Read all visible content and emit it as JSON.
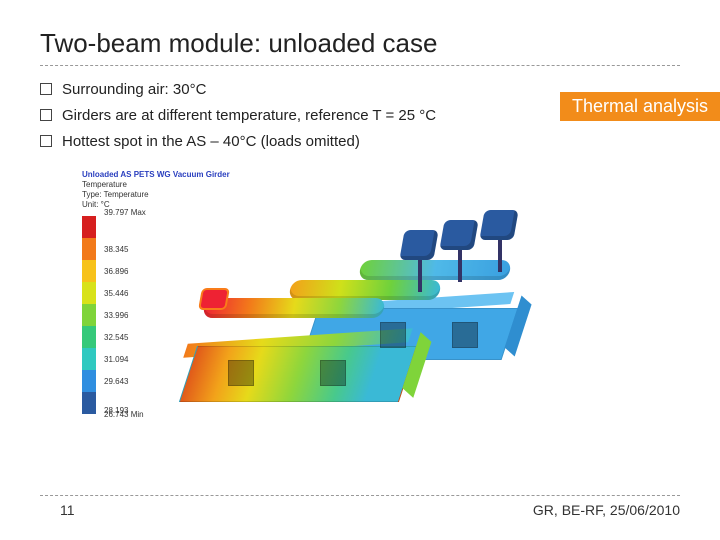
{
  "title": "Two-beam module: unloaded case",
  "badge": "Thermal analysis",
  "bullets": [
    "Surrounding air:  30°C",
    "Girders are at different temperature, reference T = 25 °C",
    "Hottest spot in the AS – 40°C (loads omitted)"
  ],
  "figure": {
    "meta": {
      "title": "Unloaded AS PETS WG Vacuum Girder",
      "lines": [
        "Temperature",
        "Type: Temperature",
        "Unit: °C"
      ]
    },
    "colorbar": {
      "ticks": [
        {
          "value": "39.797 Max",
          "color": "#d61f1f"
        },
        {
          "value": "38.345",
          "color": "#f27a1a"
        },
        {
          "value": "36.896",
          "color": "#f7c21a"
        },
        {
          "value": "35.446",
          "color": "#d8e21a"
        },
        {
          "value": "33.996",
          "color": "#7fd43a"
        },
        {
          "value": "32.545",
          "color": "#35c97a"
        },
        {
          "value": "31.094",
          "color": "#2fc9c0"
        },
        {
          "value": "29.643",
          "color": "#2f8ee0"
        },
        {
          "value": "28.193",
          "color": "#2a5aa0"
        },
        {
          "value": "26.743 Min",
          "color": null
        }
      ]
    },
    "gradients": {
      "girder1": "linear-gradient(90deg,#e15a1a 0%, #f2a21a 15%, #e6da1a 30%, #8ed63c 50%, #48c98c 70%, #3ab9d6 85%)",
      "girder1_top": "linear-gradient(90deg,#f27a1a, #e6da1a, #8ed63c, #3ab9d6)",
      "tube_t1": "linear-gradient(90deg,#e23 0%, #f27a1a 25%, #e6da1a 50%, #8ed63c 75%, #3ab9d6 100%)",
      "tube_t2": "linear-gradient(90deg,#f2a21a,#cfe01a,#6fd13c,#3ab9d6)"
    }
  },
  "footer": {
    "page": "11",
    "credit": "GR, BE-RF, 25/06/2010"
  }
}
